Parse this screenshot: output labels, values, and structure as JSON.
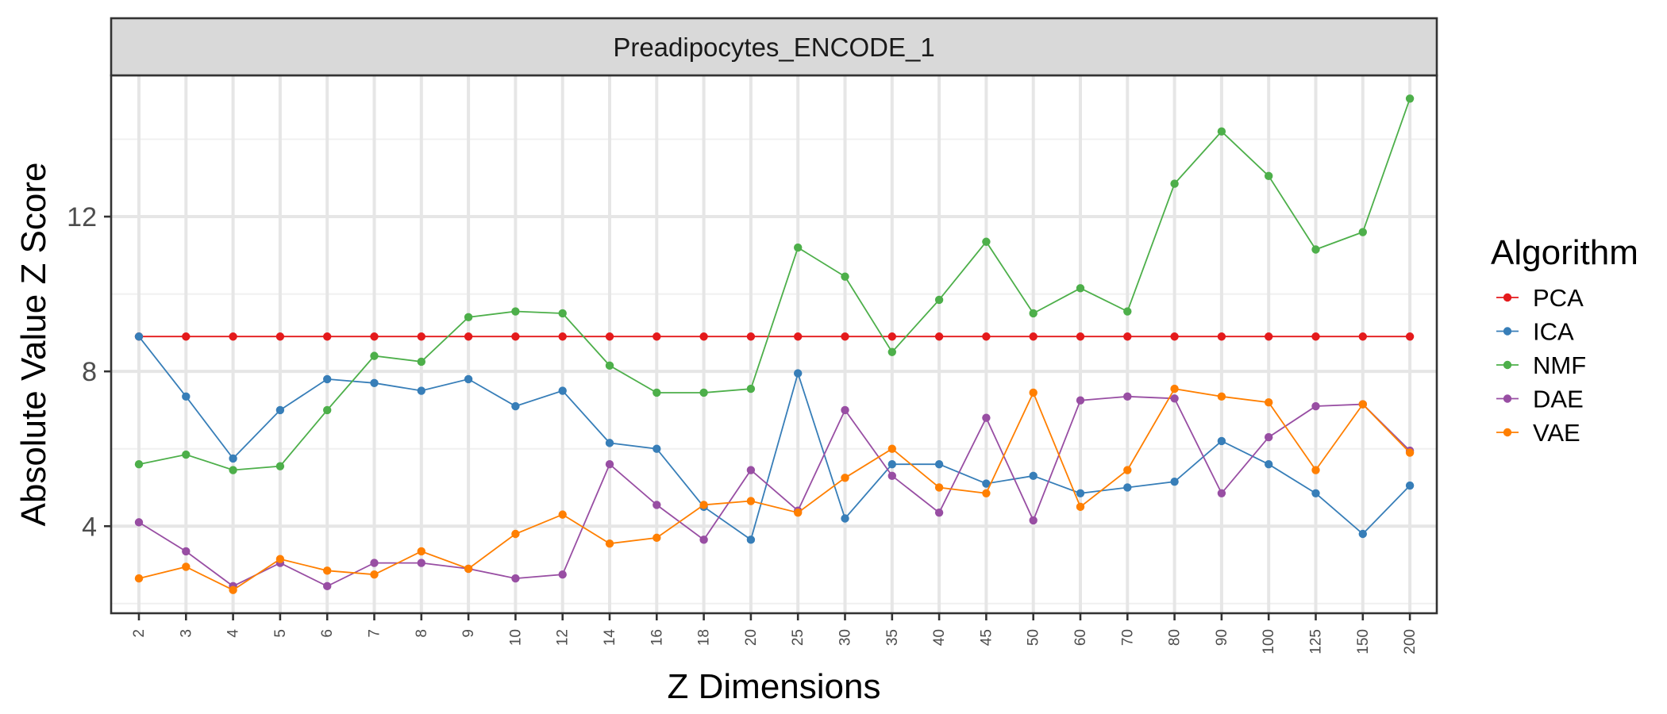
{
  "chart_data": {
    "type": "line",
    "facet_title": "Preadipocytes_ENCODE_1",
    "xlabel": "Z Dimensions",
    "ylabel": "Absolute Value Z Score",
    "categories": [
      "2",
      "3",
      "4",
      "5",
      "6",
      "7",
      "8",
      "9",
      "10",
      "12",
      "14",
      "16",
      "18",
      "20",
      "25",
      "30",
      "35",
      "40",
      "45",
      "50",
      "60",
      "70",
      "80",
      "90",
      "100",
      "125",
      "150",
      "200"
    ],
    "y_ticks": [
      4,
      8,
      12
    ],
    "ylim": [
      1.75,
      15.65
    ],
    "grid": true,
    "legend": {
      "title": "Algorithm",
      "position": "right"
    },
    "series": [
      {
        "name": "PCA",
        "color": "#e41a1c",
        "values": [
          8.9,
          8.9,
          8.9,
          8.9,
          8.9,
          8.9,
          8.9,
          8.9,
          8.9,
          8.9,
          8.9,
          8.9,
          8.9,
          8.9,
          8.9,
          8.9,
          8.9,
          8.9,
          8.9,
          8.9,
          8.9,
          8.9,
          8.9,
          8.9,
          8.9,
          8.9,
          8.9,
          8.9
        ]
      },
      {
        "name": "ICA",
        "color": "#377eb8",
        "values": [
          8.9,
          7.35,
          5.75,
          7.0,
          7.8,
          7.7,
          7.5,
          7.8,
          7.1,
          7.5,
          6.15,
          6.0,
          4.5,
          3.65,
          7.95,
          4.2,
          5.6,
          5.6,
          5.1,
          5.3,
          4.85,
          5.0,
          5.15,
          6.2,
          5.6,
          4.85,
          3.8,
          5.05
        ]
      },
      {
        "name": "NMF",
        "color": "#4daf4a",
        "values": [
          5.6,
          5.85,
          5.45,
          5.55,
          7.0,
          8.4,
          8.25,
          9.4,
          9.55,
          9.5,
          8.15,
          7.45,
          7.45,
          7.55,
          11.2,
          10.45,
          8.5,
          9.85,
          11.35,
          9.5,
          10.15,
          9.55,
          12.85,
          14.2,
          13.05,
          11.15,
          11.6,
          15.05
        ]
      },
      {
        "name": "DAE",
        "color": "#984ea3",
        "values": [
          4.1,
          3.35,
          2.45,
          3.05,
          2.45,
          3.05,
          3.05,
          2.9,
          2.65,
          2.75,
          5.6,
          4.55,
          3.65,
          5.45,
          4.4,
          7.0,
          5.3,
          4.35,
          6.8,
          4.15,
          7.25,
          7.35,
          7.3,
          4.85,
          6.3,
          7.1,
          7.15,
          5.95
        ]
      },
      {
        "name": "VAE",
        "color": "#ff7f00",
        "values": [
          2.65,
          2.95,
          2.35,
          3.15,
          2.85,
          2.75,
          3.35,
          2.9,
          3.8,
          4.3,
          3.55,
          3.7,
          4.55,
          4.65,
          4.35,
          5.25,
          6.0,
          5.0,
          4.85,
          7.45,
          4.5,
          5.45,
          7.55,
          7.35,
          7.2,
          5.45,
          7.15,
          5.9
        ]
      }
    ]
  }
}
